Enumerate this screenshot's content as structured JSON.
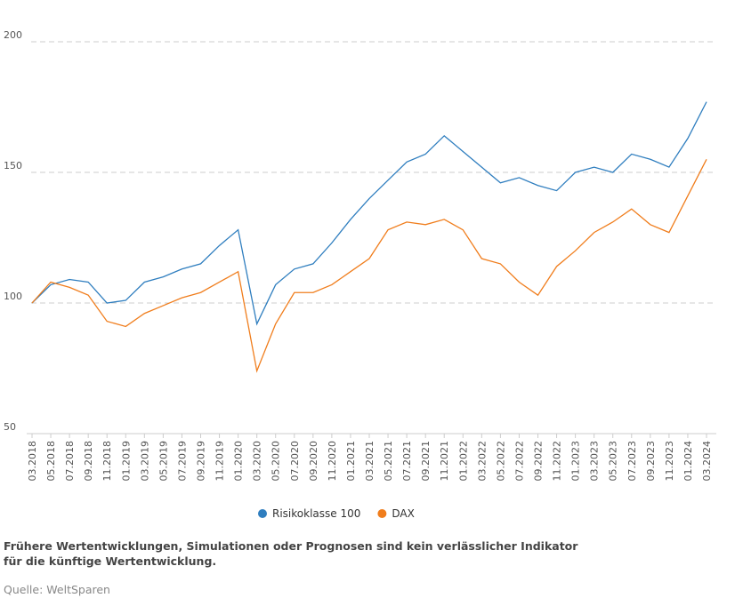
{
  "chart_data": {
    "type": "line",
    "x": [
      "03.2018",
      "05.2018",
      "07.2018",
      "09.2018",
      "11.2018",
      "01.2019",
      "03.2019",
      "05.2019",
      "07.2019",
      "09.2019",
      "11.2019",
      "01.2020",
      "03.2020",
      "05.2020",
      "07.2020",
      "09.2020",
      "11.2020",
      "01.2021",
      "03.2021",
      "05.2021",
      "07.2021",
      "09.2021",
      "11.2021",
      "01.2022",
      "03.2022",
      "05.2022",
      "07.2022",
      "09.2022",
      "11.2022",
      "01.2023",
      "03.2023",
      "05.2023",
      "07.2023",
      "09.2023",
      "11.2023",
      "01.2024",
      "03.2024"
    ],
    "series": [
      {
        "name": "Risikoklasse 100",
        "color": "#2f7ebf",
        "values": [
          100,
          107,
          109,
          108,
          100,
          101,
          108,
          110,
          113,
          115,
          122,
          128,
          92,
          107,
          113,
          115,
          123,
          132,
          140,
          147,
          154,
          157,
          164,
          158,
          152,
          146,
          148,
          145,
          143,
          150,
          152,
          150,
          157,
          155,
          152,
          163,
          177
        ]
      },
      {
        "name": "DAX",
        "color": "#f07d1c",
        "values": [
          100,
          108,
          106,
          103,
          93,
          91,
          96,
          99,
          102,
          104,
          108,
          112,
          74,
          92,
          104,
          104,
          107,
          112,
          117,
          128,
          131,
          130,
          132,
          128,
          117,
          115,
          108,
          103,
          114,
          120,
          127,
          131,
          136,
          130,
          127,
          141,
          155
        ]
      }
    ],
    "ylim": [
      50,
      200
    ],
    "yticks": [
      50,
      100,
      150,
      200
    ],
    "grid": true,
    "footnote": "Frühere Wertentwicklungen, Simulationen oder Prognosen sind kein verlässlicher Indikator für die künftige Wertentwicklung.",
    "source": "Quelle: WeltSparen"
  }
}
